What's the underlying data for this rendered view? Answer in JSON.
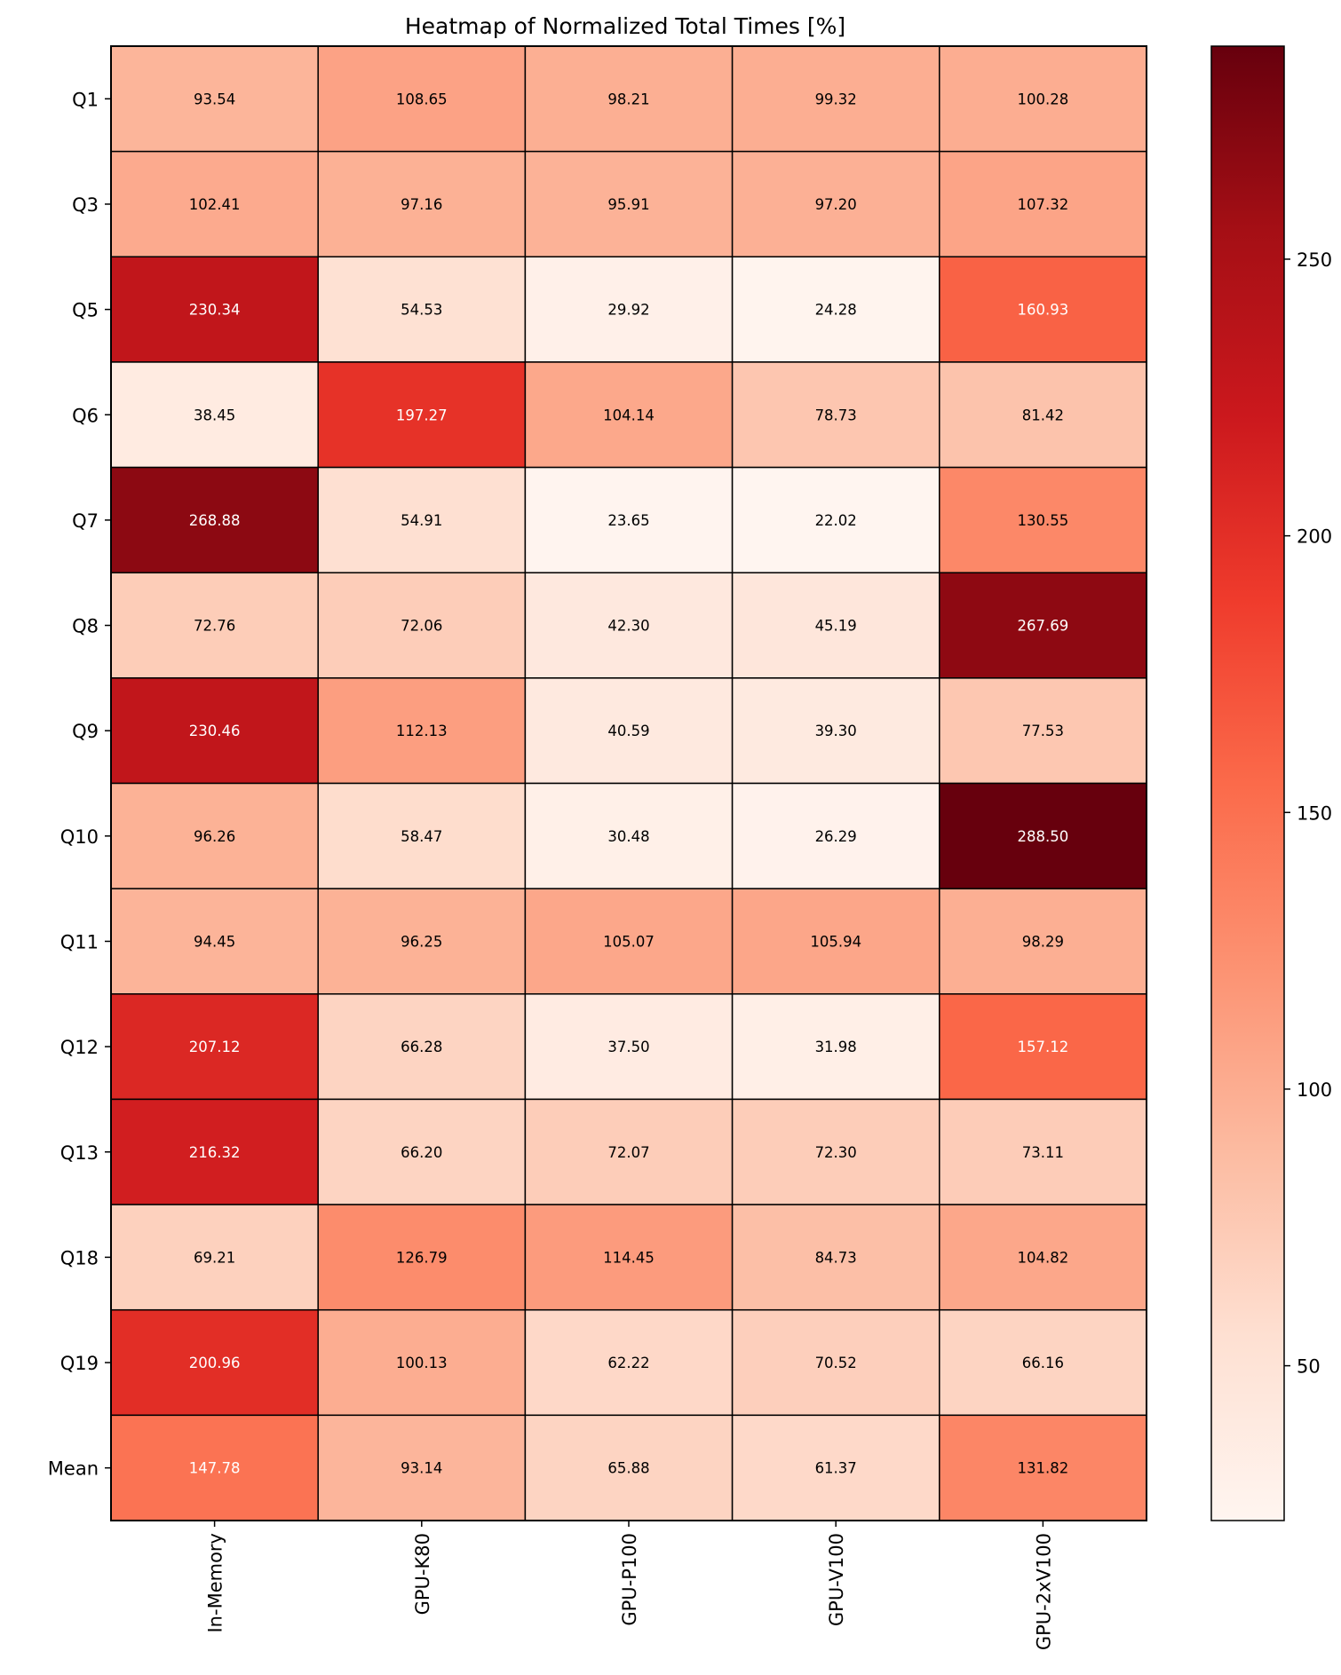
{
  "chart_data": {
    "type": "heatmap",
    "title": "Heatmap of Normalized Total Times [%]",
    "rows": [
      "Q1",
      "Q3",
      "Q5",
      "Q6",
      "Q7",
      "Q8",
      "Q9",
      "Q10",
      "Q11",
      "Q12",
      "Q13",
      "Q18",
      "Q19",
      "Mean"
    ],
    "columns": [
      "In-Memory",
      "GPU-K80",
      "GPU-P100",
      "GPU-V100",
      "GPU-2xV100"
    ],
    "values": [
      [
        93.54,
        108.65,
        98.21,
        99.32,
        100.28
      ],
      [
        102.41,
        97.16,
        95.91,
        97.2,
        107.32
      ],
      [
        230.34,
        54.53,
        29.92,
        24.28,
        160.93
      ],
      [
        38.45,
        197.27,
        104.14,
        78.73,
        81.42
      ],
      [
        268.88,
        54.91,
        23.65,
        22.02,
        130.55
      ],
      [
        72.76,
        72.06,
        42.3,
        45.19,
        267.69
      ],
      [
        230.46,
        112.13,
        40.59,
        39.3,
        77.53
      ],
      [
        96.26,
        58.47,
        30.48,
        26.29,
        288.5
      ],
      [
        94.45,
        96.25,
        105.07,
        105.94,
        98.29
      ],
      [
        207.12,
        66.28,
        37.5,
        31.98,
        157.12
      ],
      [
        216.32,
        66.2,
        72.07,
        72.3,
        73.11
      ],
      [
        69.21,
        126.79,
        114.45,
        84.73,
        104.82
      ],
      [
        200.96,
        100.13,
        62.22,
        70.52,
        66.16
      ],
      [
        147.78,
        93.14,
        65.88,
        61.37,
        131.82
      ]
    ],
    "value_format": "2 decimals",
    "colormap": "Reds",
    "colormap_stops": [
      "#fff5f0",
      "#fee0d2",
      "#fcbba1",
      "#fc9272",
      "#fb6a4a",
      "#ef3b2c",
      "#cb181d",
      "#a50f15",
      "#67000d"
    ],
    "color_range": [
      22.02,
      288.5
    ],
    "colorbar": {
      "ticks": [
        50,
        100,
        150,
        200,
        250
      ],
      "position": "right"
    },
    "text_color_threshold": 145,
    "grid_lines": true,
    "line_color": "#000000"
  }
}
